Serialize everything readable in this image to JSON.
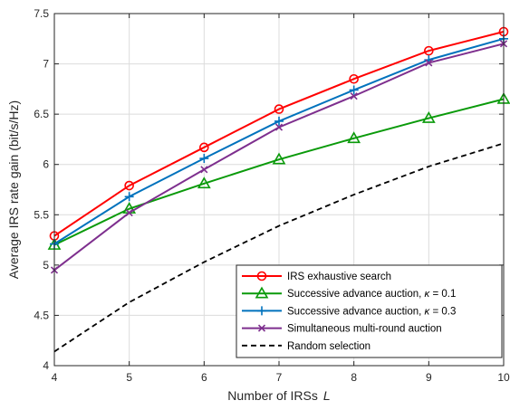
{
  "chart_data": {
    "type": "line",
    "xlabel": "Number of IRSs",
    "xlabel_symbol": "L",
    "ylabel": "Average IRS rate gain (bit/s/Hz)",
    "xlim": [
      4,
      10
    ],
    "ylim": [
      4,
      7.5
    ],
    "grid": true,
    "legend_position": "bottom-right",
    "x": [
      4,
      5,
      6,
      7,
      8,
      9,
      10
    ],
    "x_tick_labels": [
      "4",
      "5",
      "6",
      "7",
      "8",
      "9",
      "10"
    ],
    "y_ticks": [
      4,
      4.5,
      5,
      5.5,
      6,
      6.5,
      7,
      7.5
    ],
    "y_tick_labels": [
      "4",
      "4.5",
      "5",
      "5.5",
      "6",
      "6.5",
      "7",
      "7.5"
    ],
    "series": [
      {
        "name": "IRS exhaustive search",
        "color": "#ff0000",
        "marker": "circle",
        "dash": "solid",
        "values": [
          5.29,
          5.79,
          6.17,
          6.55,
          6.85,
          7.13,
          7.32
        ]
      },
      {
        "name": "Successive advance auction, κ = 0.1",
        "legend_prefix": "Successive advance auction, ",
        "legend_symbol": "κ",
        "legend_suffix": " = 0.1",
        "color": "#0a9a0a",
        "marker": "triangle",
        "dash": "solid",
        "values": [
          5.2,
          5.56,
          5.81,
          6.05,
          6.26,
          6.46,
          6.65
        ]
      },
      {
        "name": "Successive advance auction, κ = 0.3",
        "legend_prefix": "Successive advance auction, ",
        "legend_symbol": "κ",
        "legend_suffix": " = 0.3",
        "color": "#0072bd",
        "marker": "plus",
        "dash": "solid",
        "values": [
          5.21,
          5.68,
          6.06,
          6.43,
          6.74,
          7.04,
          7.25
        ]
      },
      {
        "name": "Simultaneous multi-round auction",
        "color": "#7e2f8e",
        "marker": "x",
        "dash": "solid",
        "values": [
          4.95,
          5.52,
          5.95,
          6.37,
          6.68,
          7.01,
          7.2
        ]
      },
      {
        "name": "Random selection",
        "color": "#000000",
        "marker": "none",
        "dash": "dashed",
        "values": [
          4.14,
          4.63,
          5.03,
          5.39,
          5.7,
          5.98,
          6.21
        ]
      }
    ]
  }
}
